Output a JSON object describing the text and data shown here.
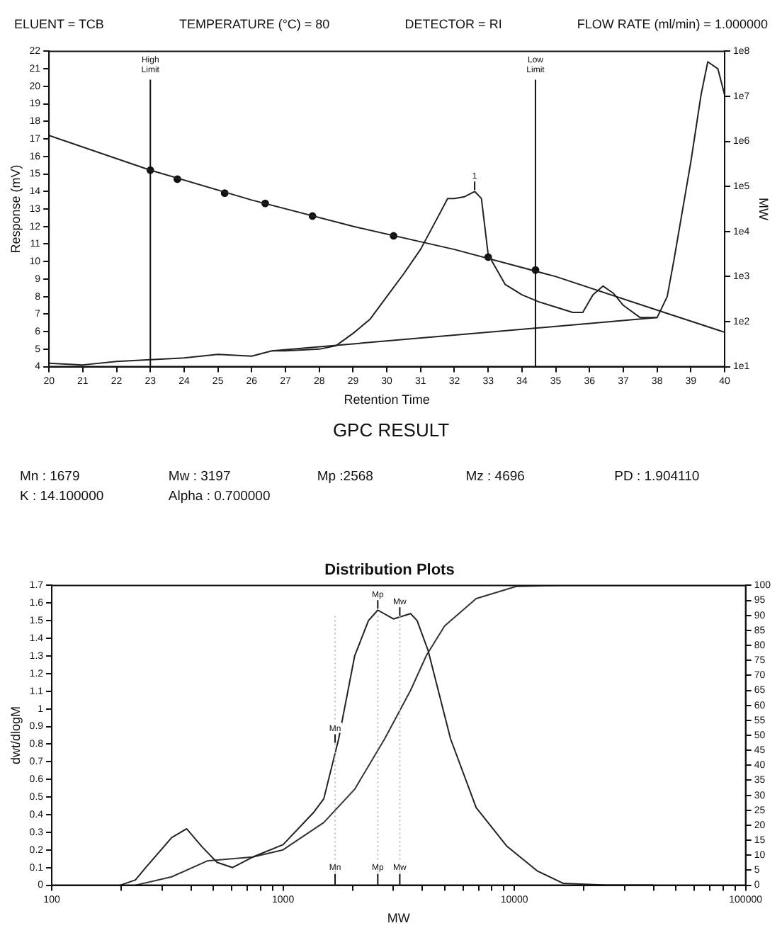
{
  "chart_data": [
    {
      "type": "line",
      "xlabel": "Retention Time",
      "ylabel": "Response (mV)",
      "y2label": "MW",
      "annotations": [
        "ELUENT = TCB",
        "TEMPERATURE (°C) = 80",
        "DETECTOR = RI",
        "FLOW RATE (ml/min) = 1.000000",
        {
          "text": "1",
          "x": 32.6,
          "y": 14.0
        }
      ],
      "xlim": [
        20,
        40
      ],
      "xticks": [
        20,
        21,
        22,
        23,
        24,
        25,
        26,
        27,
        28,
        29,
        30,
        31,
        32,
        33,
        34,
        35,
        36,
        37,
        38,
        39,
        40
      ],
      "ylim": [
        4,
        22
      ],
      "yticks": [
        4,
        5,
        6,
        7,
        8,
        9,
        10,
        11,
        12,
        13,
        14,
        15,
        16,
        17,
        18,
        19,
        20,
        21,
        22
      ],
      "log": "y2",
      "y2lim": [
        10,
        100000000
      ],
      "y2ticks": [
        {
          "value": 10,
          "label": "1e1"
        },
        {
          "value": 100,
          "label": "1e2"
        },
        {
          "value": 1000,
          "label": "1e3"
        },
        {
          "value": 10000,
          "label": "1e4"
        },
        {
          "value": 100000,
          "label": "1e5"
        },
        {
          "value": 1000000,
          "label": "1e6"
        },
        {
          "value": 10000000,
          "label": "1e7"
        },
        {
          "value": 100000000,
          "label": "1e8"
        }
      ],
      "ref_lines": [
        {
          "axis": "x",
          "value": 23,
          "label": "High Limit",
          "color": "#111111"
        },
        {
          "axis": "x",
          "value": 34.4,
          "label": "Low Limit",
          "color": "#111111"
        }
      ],
      "series": [
        {
          "type": "line",
          "color": "#222222",
          "marker": "none",
          "x": [
            20,
            21,
            22,
            23,
            24,
            25,
            26,
            26.6,
            27,
            28,
            28.5,
            29,
            29.5,
            30,
            30.5,
            31,
            31.5,
            31.8,
            32,
            32.3,
            32.6,
            32.8,
            33,
            33.5,
            34,
            34.5,
            35,
            35.5,
            35.8,
            36.1,
            36.4,
            36.7,
            37,
            37.5,
            38,
            38.3,
            38.5,
            39,
            39.3,
            39.5,
            39.8,
            40
          ],
          "values": [
            4.2,
            4.1,
            4.3,
            4.4,
            4.5,
            4.7,
            4.6,
            4.9,
            4.9,
            5.0,
            5.2,
            5.9,
            6.7,
            8.0,
            9.3,
            10.7,
            12.5,
            13.6,
            13.6,
            13.7,
            14.0,
            13.6,
            10.4,
            8.7,
            8.1,
            7.7,
            7.4,
            7.1,
            7.1,
            8.1,
            8.6,
            8.2,
            7.5,
            6.8,
            6.8,
            8.0,
            10.1,
            15.7,
            19.5,
            21.4,
            21.0,
            19.5
          ]
        },
        {
          "type": "line",
          "color": "#222222",
          "marker": "none",
          "x": [
            26.6,
            38
          ],
          "values": [
            4.9,
            6.8
          ]
        },
        {
          "type": "line",
          "color": "#222222",
          "marker": "none",
          "axis": "y2",
          "x": [
            20,
            23,
            26,
            29,
            32,
            35,
            38,
            40
          ],
          "values": [
            1350000,
            230000,
            50000,
            13000,
            4000,
            1000,
            180,
            58
          ]
        },
        {
          "type": "scatter",
          "color": "#111111",
          "marker": "circle",
          "axis": "y2",
          "x": [
            23,
            23.8,
            25.2,
            26.4,
            27.8,
            30.2,
            33.0,
            34.4
          ],
          "values": [
            230000,
            145000,
            71000,
            42000,
            22000,
            8000,
            2700,
            1400
          ]
        }
      ]
    },
    {
      "type": "other",
      "title": "GPC RESULT",
      "annotations": [
        "Mn : 1679",
        "Mw : 3197",
        "Mp :2568",
        "Mz : 4696",
        "PD : 1.904110",
        "K : 14.100000",
        "Alpha : 0.700000"
      ]
    },
    {
      "type": "line",
      "title": "Distribution Plots",
      "xlabel": "MW",
      "ylabel": "dwt/dlogM",
      "log": "x",
      "xlim": [
        100,
        100000
      ],
      "xticks": [
        100,
        {
          "value": 200,
          "label": null
        },
        {
          "value": 300,
          "label": null
        },
        {
          "value": 400,
          "label": null
        },
        {
          "value": 500,
          "label": null
        },
        {
          "value": 600,
          "label": null
        },
        {
          "value": 700,
          "label": null
        },
        {
          "value": 800,
          "label": null
        },
        {
          "value": 900,
          "label": null
        },
        1000,
        {
          "value": 2000,
          "label": null
        },
        {
          "value": 3000,
          "label": null
        },
        {
          "value": 4000,
          "label": null
        },
        {
          "value": 5000,
          "label": null
        },
        {
          "value": 6000,
          "label": null
        },
        {
          "value": 7000,
          "label": null
        },
        {
          "value": 8000,
          "label": null
        },
        {
          "value": 9000,
          "label": null
        },
        10000,
        {
          "value": 20000,
          "label": null
        },
        {
          "value": 30000,
          "label": null
        },
        {
          "value": 40000,
          "label": null
        },
        {
          "value": 50000,
          "label": null
        },
        {
          "value": 60000,
          "label": null
        },
        {
          "value": 70000,
          "label": null
        },
        {
          "value": 80000,
          "label": null
        },
        {
          "value": 90000,
          "label": null
        },
        100000
      ],
      "ylim": [
        0,
        1.7
      ],
      "yticks": [
        0,
        0.1,
        0.2,
        0.3,
        0.4,
        0.5,
        0.6,
        0.7,
        0.8,
        0.9,
        1,
        1.1,
        1.2,
        1.3,
        1.4,
        1.5,
        1.6,
        1.7
      ],
      "y2lim": [
        0,
        100
      ],
      "y2ticks": [
        0,
        5,
        10,
        15,
        20,
        25,
        30,
        35,
        40,
        45,
        50,
        55,
        60,
        65,
        70,
        75,
        80,
        85,
        90,
        95,
        100
      ],
      "annotations": [
        {
          "text": "Mp",
          "x": 2568,
          "y": 1.56
        },
        {
          "text": "Mw",
          "x": 3197,
          "y": 1.52
        },
        {
          "text": "Mn",
          "x": 1679,
          "y": 0.8
        }
      ],
      "ref_lines": [
        {
          "axis": "x",
          "value": 1679,
          "label": "Mn",
          "color": "#bbbbbb",
          "line_style": "dotted"
        },
        {
          "axis": "x",
          "value": 2568,
          "label": "Mp",
          "color": "#bbbbbb",
          "line_style": "dotted"
        },
        {
          "axis": "x",
          "value": 3197,
          "label": "Mw",
          "color": "#bbbbbb",
          "line_style": "dotted"
        }
      ],
      "series": [
        {
          "type": "line",
          "color": "#222222",
          "marker": "none",
          "x": [
            198,
            230,
            255,
            330,
            383,
            445,
            518,
            605,
            740,
            1000,
            1350,
            1500,
            1740,
            2040,
            2340,
            2568,
            3000,
            3560,
            3800,
            4240,
            5300,
            6840,
            9300,
            12600,
            16300,
            25000,
            40000
          ],
          "values": [
            0,
            0.03,
            0.1,
            0.27,
            0.32,
            0.22,
            0.13,
            0.1,
            0.16,
            0.23,
            0.41,
            0.49,
            0.83,
            1.3,
            1.5,
            1.56,
            1.51,
            1.54,
            1.5,
            1.33,
            0.83,
            0.44,
            0.22,
            0.08,
            0.01,
            0,
            0
          ]
        },
        {
          "type": "line",
          "color": "#333333",
          "marker": "none",
          "axis": "y2",
          "x": [
            230,
            330,
            470,
            740,
            1000,
            1500,
            2040,
            2750,
            3560,
            4170,
            5000,
            6840,
            10200,
            15500,
            100000
          ],
          "values": [
            0,
            2.8,
            8.1,
            9.4,
            11.8,
            20.9,
            32,
            48.8,
            65,
            76.7,
            86.5,
            95.6,
            99.7,
            100,
            100
          ]
        }
      ]
    }
  ]
}
